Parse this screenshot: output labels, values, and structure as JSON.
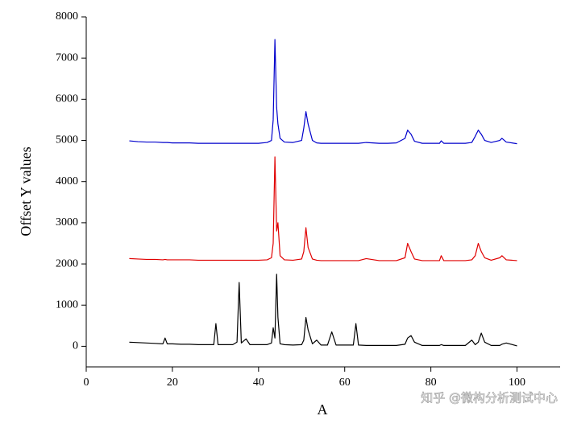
{
  "chart_data": {
    "type": "line",
    "x_label": "A",
    "y_label": "Offset Y values",
    "annotation": "知乎 @微构分析测试中心",
    "xlim": [
      0,
      110
    ],
    "ylim": [
      -500,
      8000
    ],
    "xticks": [
      0,
      20,
      40,
      60,
      80,
      100
    ],
    "yticks": [
      0,
      1000,
      2000,
      3000,
      4000,
      5000,
      6000,
      7000,
      8000
    ],
    "x": [
      10,
      12,
      14,
      16,
      17.8,
      18.3,
      18.8,
      20,
      22,
      24,
      26,
      28,
      29.6,
      30.1,
      30.6,
      32,
      34,
      35.0,
      35.5,
      36.0,
      37.1,
      38,
      40,
      42,
      43.0,
      43.4,
      43.8,
      44.2,
      44.5,
      45.0,
      46,
      48,
      50,
      50.5,
      51.0,
      51.5,
      52.5,
      53.5,
      54.5,
      56,
      57.0,
      58,
      60,
      62,
      62.6,
      63.2,
      65,
      68,
      70,
      72,
      74,
      74.6,
      75.4,
      76.2,
      78,
      80,
      82,
      82.4,
      83,
      85,
      88,
      89.5,
      90.3,
      91.0,
      91.7,
      92.5,
      94,
      96,
      96.5,
      97.5,
      100
    ],
    "series": [
      {
        "color": "#000000",
        "values": [
          100,
          90,
          80,
          70,
          60,
          200,
          60,
          60,
          50,
          50,
          40,
          40,
          40,
          550,
          40,
          40,
          40,
          100,
          1550,
          80,
          180,
          40,
          40,
          40,
          80,
          450,
          200,
          1750,
          700,
          60,
          40,
          30,
          40,
          150,
          700,
          400,
          60,
          150,
          30,
          30,
          350,
          30,
          30,
          30,
          550,
          30,
          20,
          20,
          20,
          20,
          50,
          200,
          260,
          100,
          20,
          20,
          20,
          40,
          20,
          20,
          20,
          150,
          40,
          100,
          320,
          100,
          20,
          20,
          50,
          80,
          10
        ]
      },
      {
        "color": "#e00000",
        "values": [
          2130,
          2120,
          2110,
          2110,
          2100,
          2110,
          2100,
          2100,
          2100,
          2100,
          2090,
          2090,
          2090,
          2090,
          2090,
          2090,
          2090,
          2090,
          2090,
          2090,
          2090,
          2090,
          2090,
          2100,
          2150,
          2500,
          4600,
          2800,
          3000,
          2200,
          2100,
          2090,
          2120,
          2300,
          2880,
          2400,
          2120,
          2090,
          2080,
          2080,
          2080,
          2080,
          2080,
          2080,
          2080,
          2080,
          2130,
          2080,
          2080,
          2080,
          2150,
          2500,
          2300,
          2120,
          2080,
          2080,
          2080,
          2200,
          2080,
          2080,
          2080,
          2100,
          2200,
          2500,
          2300,
          2150,
          2090,
          2150,
          2200,
          2100,
          2080
        ]
      },
      {
        "color": "#0000cc",
        "values": [
          4990,
          4970,
          4960,
          4960,
          4950,
          4950,
          4950,
          4940,
          4940,
          4940,
          4930,
          4930,
          4930,
          4930,
          4930,
          4930,
          4930,
          4930,
          4930,
          4930,
          4930,
          4930,
          4930,
          4950,
          5000,
          5500,
          7450,
          5800,
          5400,
          5050,
          4960,
          4950,
          5000,
          5300,
          5700,
          5400,
          5000,
          4940,
          4930,
          4930,
          4930,
          4930,
          4930,
          4930,
          4930,
          4930,
          4950,
          4930,
          4930,
          4940,
          5050,
          5250,
          5150,
          4980,
          4930,
          4930,
          4930,
          4990,
          4930,
          4930,
          4930,
          4950,
          5100,
          5250,
          5150,
          5000,
          4950,
          5000,
          5050,
          4960,
          4920
        ]
      }
    ]
  }
}
